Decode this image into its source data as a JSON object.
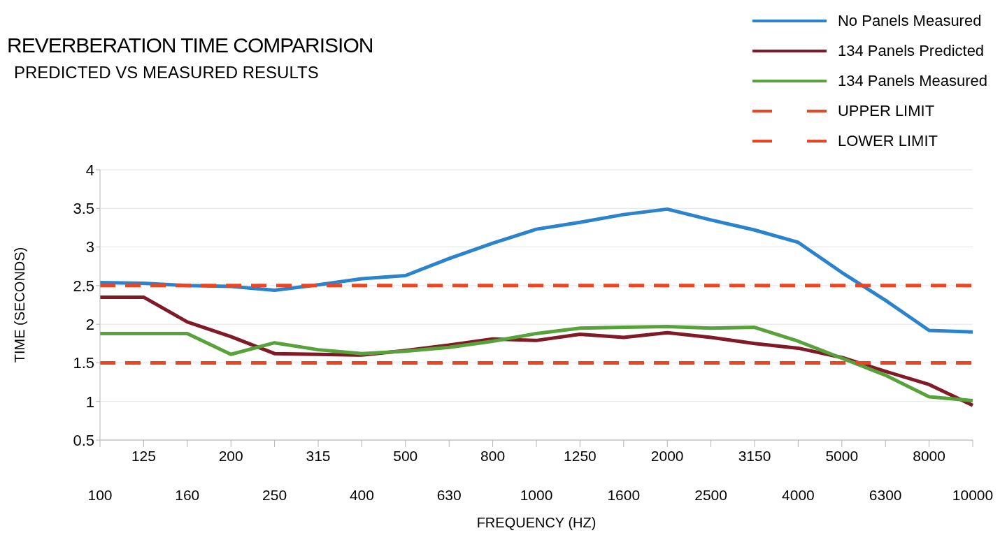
{
  "chart_data": {
    "type": "line",
    "title": "REVERBERATION TIME COMPARISION",
    "subtitle": "PREDICTED VS MEASURED RESULTS",
    "xlabel": "FREQUENCY (HZ)",
    "ylabel": "TIME (SECONDS)",
    "categories": [
      "100",
      "125",
      "160",
      "200",
      "250",
      "315",
      "400",
      "500",
      "630",
      "800",
      "1000",
      "1250",
      "1600",
      "2000",
      "2500",
      "3150",
      "4000",
      "5000",
      "6300",
      "8000",
      "10000"
    ],
    "series": [
      {
        "name": "No Panels Measured",
        "color": "#2a83cc",
        "values": [
          2.54,
          2.53,
          2.5,
          2.49,
          2.44,
          2.51,
          2.59,
          2.63,
          2.85,
          3.05,
          3.23,
          3.32,
          3.42,
          3.49,
          3.35,
          3.22,
          3.06,
          2.67,
          2.31,
          1.92,
          1.9
        ]
      },
      {
        "name": "134 Panels Predicted",
        "color": "#7f1a26",
        "values": [
          2.35,
          2.35,
          2.03,
          1.84,
          1.62,
          1.61,
          1.6,
          1.66,
          1.73,
          1.81,
          1.79,
          1.87,
          1.83,
          1.89,
          1.83,
          1.75,
          1.69,
          1.57,
          1.39,
          1.22,
          0.95
        ]
      },
      {
        "name": "134 Panels Measured",
        "color": "#58a23c",
        "values": [
          1.88,
          1.88,
          1.88,
          1.61,
          1.76,
          1.67,
          1.62,
          1.65,
          1.7,
          1.78,
          1.88,
          1.95,
          1.96,
          1.97,
          1.95,
          1.96,
          1.78,
          1.56,
          1.34,
          1.06,
          1.01
        ]
      },
      {
        "name": "UPPER LIMIT",
        "color": "#ee4422",
        "line_style": "dashed",
        "values": [
          2.5,
          2.5,
          2.5,
          2.5,
          2.5,
          2.5,
          2.5,
          2.5,
          2.5,
          2.5,
          2.5,
          2.5,
          2.5,
          2.5,
          2.5,
          2.5,
          2.5,
          2.5,
          2.5,
          2.5,
          2.5
        ]
      },
      {
        "name": "LOWER LIMIT",
        "color": "#ee4422",
        "line_style": "dashed",
        "values": [
          1.5,
          1.5,
          1.5,
          1.5,
          1.5,
          1.5,
          1.5,
          1.5,
          1.5,
          1.5,
          1.5,
          1.5,
          1.5,
          1.5,
          1.5,
          1.5,
          1.5,
          1.5,
          1.5,
          1.5,
          1.5
        ]
      }
    ],
    "ylim": [
      0.5,
      4
    ],
    "yticks": [
      0.5,
      1,
      1.5,
      2,
      2.5,
      3,
      3.5,
      4
    ],
    "grid": "y",
    "legend": "top right",
    "marker": "none",
    "line_style": "solid"
  }
}
